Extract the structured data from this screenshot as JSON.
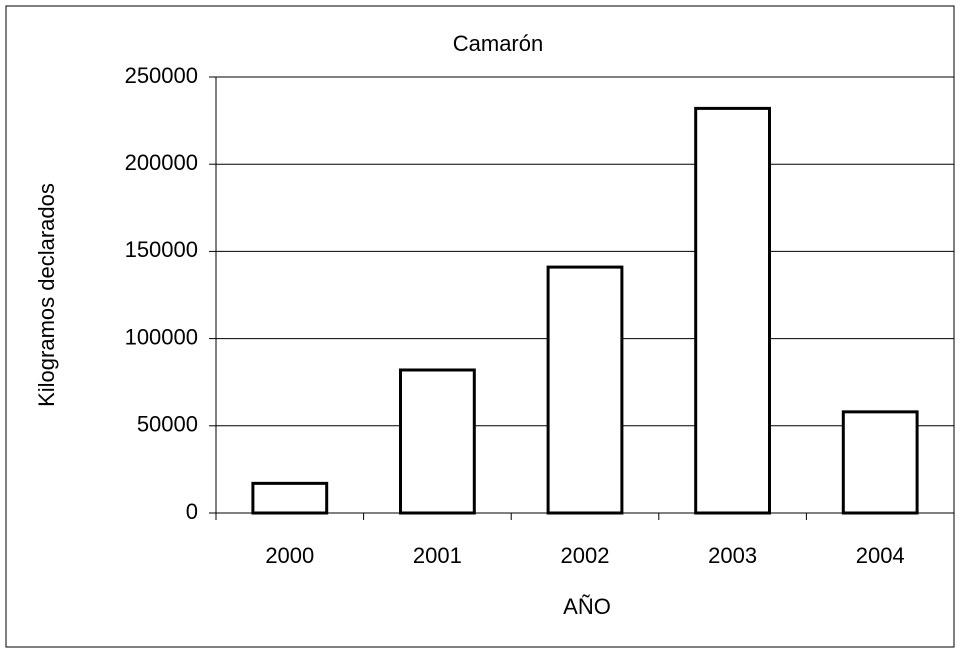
{
  "chart_data": {
    "type": "bar",
    "title": "Camarón",
    "x_label": "AÑO",
    "y_label": "Kilogramos declarados",
    "categories": [
      "2000",
      "2001",
      "2002",
      "2003",
      "2004"
    ],
    "values": [
      17000,
      82000,
      141000,
      232000,
      58000
    ],
    "color": "#ffffff",
    "ylim": [
      0,
      250000
    ],
    "yticks": [
      0,
      50000,
      100000,
      150000,
      200000,
      250000
    ],
    "grid": true
  }
}
